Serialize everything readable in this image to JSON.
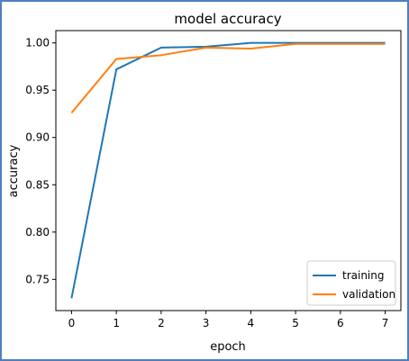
{
  "chart_data": {
    "type": "line",
    "title": "model accuracy",
    "xlabel": "epoch",
    "ylabel": "accuracy",
    "x": [
      0,
      1,
      2,
      3,
      4,
      5,
      6,
      7
    ],
    "xlim": [
      -0.35,
      7.35
    ],
    "ylim": [
      0.717,
      1.013
    ],
    "xticks": [
      "0",
      "1",
      "2",
      "3",
      "4",
      "5",
      "6",
      "7"
    ],
    "yticks": [
      "0.75",
      "0.80",
      "0.85",
      "0.90",
      "0.95",
      "1.00"
    ],
    "grid": false,
    "legend_position": "lower right",
    "series": [
      {
        "name": "training",
        "color": "#1f77b4",
        "values": [
          0.73,
          0.972,
          0.995,
          0.996,
          1.0,
          1.0,
          1.0,
          1.0
        ]
      },
      {
        "name": "validation",
        "color": "#ff7f0e",
        "values": [
          0.926,
          0.983,
          0.987,
          0.995,
          0.994,
          0.999,
          0.999,
          0.999
        ]
      }
    ]
  }
}
